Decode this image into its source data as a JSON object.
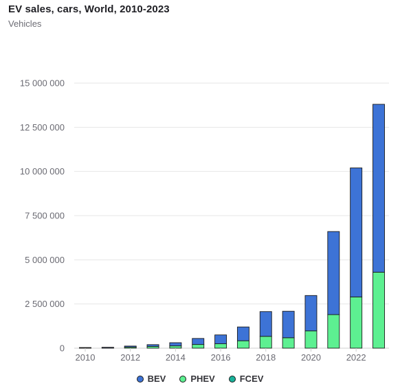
{
  "header": {
    "title": "EV sales, cars, World, 2010-2023",
    "subtitle": "Vehicles"
  },
  "colors": {
    "BEV": "#3d73d6",
    "PHEV": "#5df091",
    "FCEV": "#19b29a",
    "grid": "#e6e6e6",
    "axis_text": "#6a6a72"
  },
  "chart_data": {
    "type": "bar",
    "stacked": true,
    "title": "EV sales, cars, World, 2010-2023",
    "ylabel": "Vehicles",
    "ylim": [
      0,
      15000000
    ],
    "y_ticks": [
      0,
      2500000,
      5000000,
      7500000,
      10000000,
      12500000,
      15000000
    ],
    "y_tick_labels": [
      "0",
      "2 500 000",
      "5 000 000",
      "7 500 000",
      "10 000 000",
      "12 500 000",
      "15 000 000"
    ],
    "categories": [
      "2010",
      "2011",
      "2012",
      "2013",
      "2014",
      "2015",
      "2016",
      "2017",
      "2018",
      "2019",
      "2020",
      "2021",
      "2022",
      "2023"
    ],
    "x_tick_labels": [
      "2010",
      "2012",
      "2014",
      "2016",
      "2018",
      "2020",
      "2022"
    ],
    "series": [
      {
        "name": "PHEV",
        "values": [
          1000,
          10000,
          60000,
          100000,
          130000,
          210000,
          250000,
          420000,
          670000,
          590000,
          980000,
          1900000,
          2900000,
          4300000
        ]
      },
      {
        "name": "FCEV",
        "values": [
          0,
          0,
          0,
          0,
          0,
          0,
          0,
          0,
          0,
          0,
          0,
          0,
          0,
          0
        ]
      },
      {
        "name": "BEV",
        "values": [
          5000,
          40000,
          60000,
          100000,
          180000,
          340000,
          500000,
          780000,
          1400000,
          1500000,
          2000000,
          4700000,
          7300000,
          9500000
        ]
      }
    ],
    "legend": {
      "position": "bottom",
      "entries": [
        "BEV",
        "PHEV",
        "FCEV"
      ]
    },
    "grid": true
  }
}
